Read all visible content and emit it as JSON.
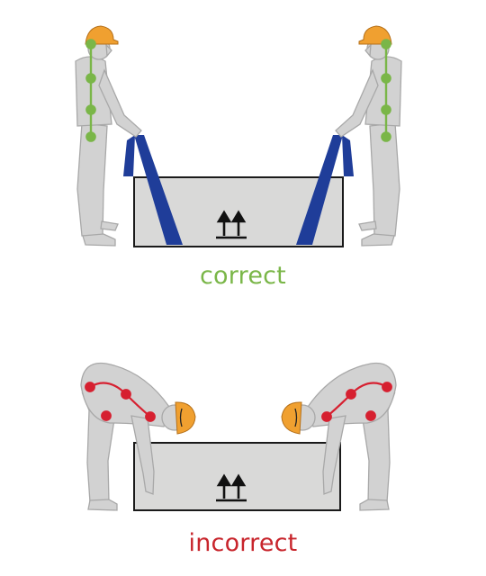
{
  "labels": {
    "correct": "correct",
    "incorrect": "incorrect"
  },
  "colors": {
    "correct_text": "#7ab648",
    "incorrect_text": "#c8252c",
    "spine_correct": "#7ab648",
    "spine_incorrect": "#d62030",
    "box_fill": "#d9d9d8",
    "box_stroke": "#1a1a1a",
    "worker_fill": "#d2d2d2",
    "worker_stroke": "#a8a8a8",
    "helmet": "#f0a030",
    "strap": "#1f3d99"
  },
  "icons": [
    "this-way-up-arrows-icon",
    "hard-hat-icon",
    "lifting-strap-icon"
  ]
}
